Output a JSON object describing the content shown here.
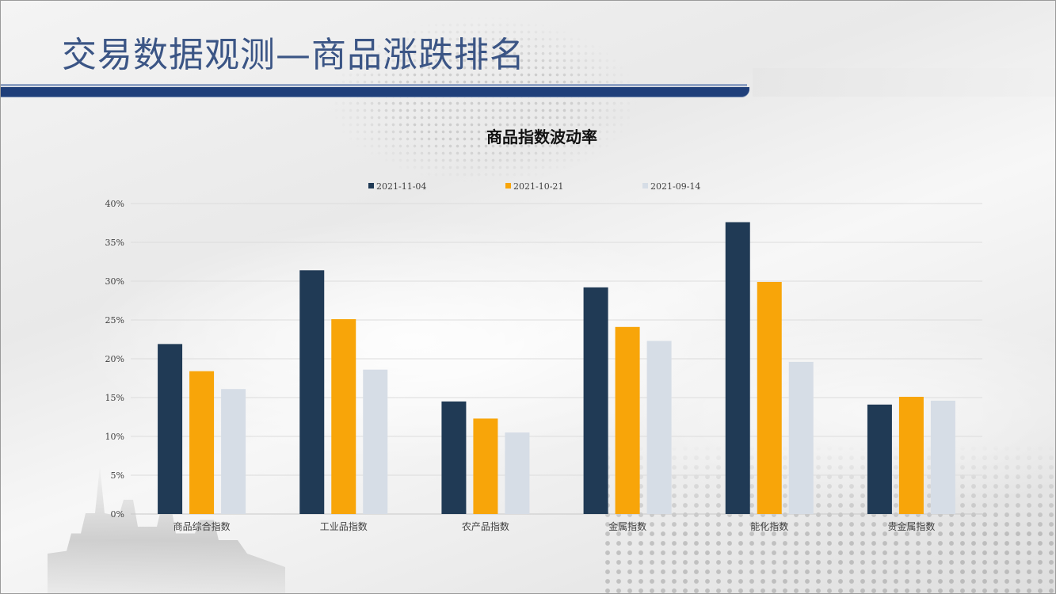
{
  "page": {
    "title": "交易数据观测—商品涨跌排名"
  },
  "colors": {
    "series": [
      "#203a55",
      "#f8a509",
      "#d6dde6"
    ],
    "grid": "#dcdcdc",
    "text": "#404040",
    "title_bar": "#1f3f7a"
  },
  "chart_data": {
    "type": "bar",
    "title": "商品指数波动率",
    "xlabel": "",
    "ylabel": "",
    "ylim": [
      0,
      40
    ],
    "yticks": [
      0,
      5,
      10,
      15,
      20,
      25,
      30,
      35,
      40
    ],
    "ytick_labels": [
      "0%",
      "5%",
      "10%",
      "15%",
      "20%",
      "25%",
      "30%",
      "35%",
      "40%"
    ],
    "grid": true,
    "legend_position": "top",
    "categories": [
      "商品综合指数",
      "工业品指数",
      "农产品指数",
      "金属指数",
      "能化指数",
      "贵金属指数"
    ],
    "series": [
      {
        "name": "2021-11-04",
        "values": [
          21.9,
          31.4,
          14.5,
          29.2,
          37.6,
          14.1
        ]
      },
      {
        "name": "2021-10-21",
        "values": [
          18.4,
          25.1,
          12.3,
          24.1,
          29.9,
          15.1
        ]
      },
      {
        "name": "2021-09-14",
        "values": [
          16.1,
          18.6,
          10.5,
          22.3,
          19.6,
          14.6
        ]
      }
    ]
  }
}
